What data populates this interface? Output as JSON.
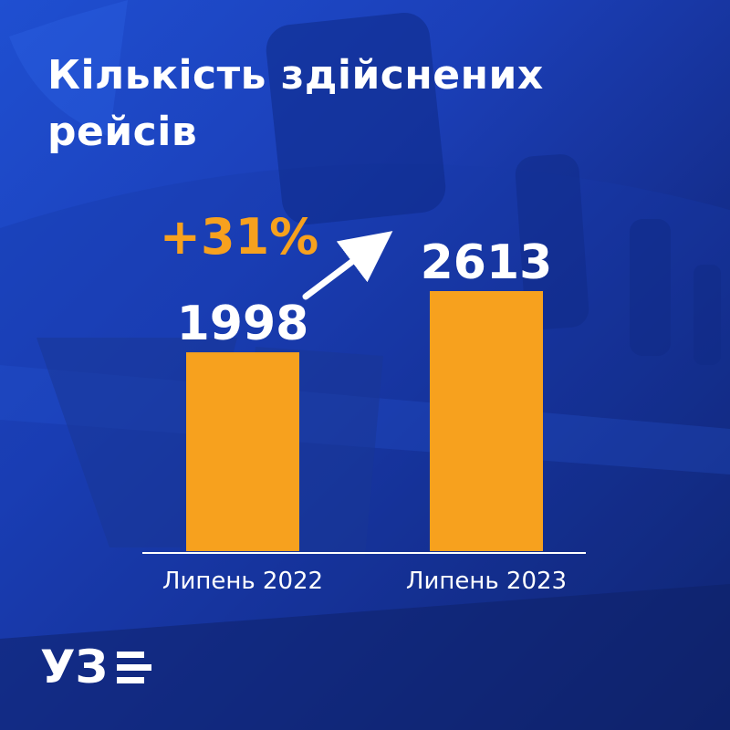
{
  "title": "Кількість здійснених рейсів",
  "colors": {
    "background": "#1b3fb8",
    "bar": "#f7a11e",
    "accent": "#f7a11e",
    "text": "#ffffff"
  },
  "logo_text": "УЗ",
  "chart_data": {
    "type": "bar",
    "title": "Кількість здійснених рейсів",
    "categories": [
      "Липень 2022",
      "Липень 2023"
    ],
    "values": [
      1998,
      2613
    ],
    "value_labels": [
      "1998",
      "2613"
    ],
    "change_label": "+31%",
    "xlabel": "",
    "ylabel": "",
    "ylim": [
      0,
      3000
    ],
    "grid": false
  }
}
